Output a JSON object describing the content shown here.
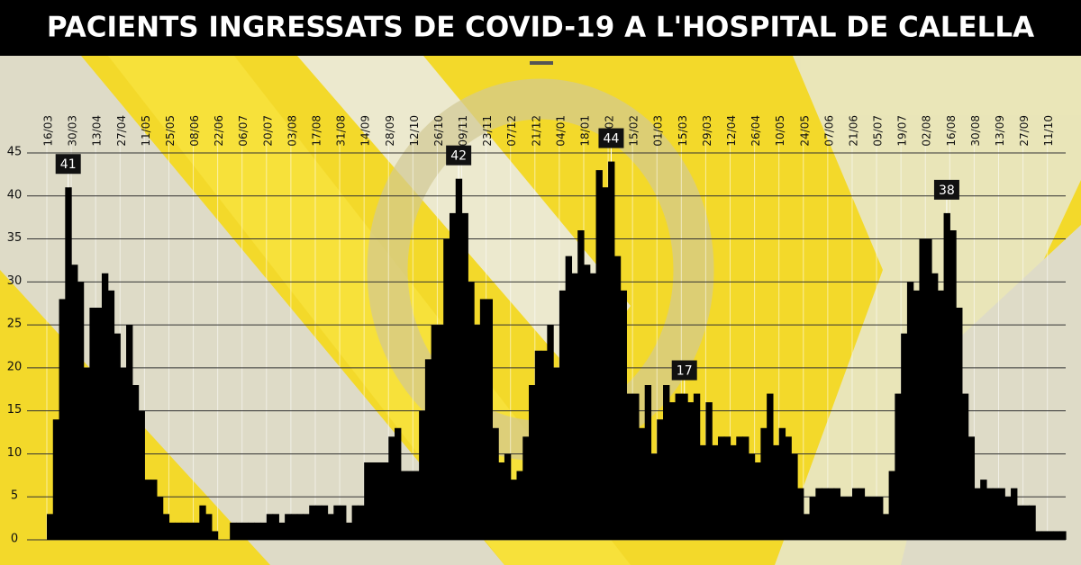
{
  "chart_data": {
    "type": "bar",
    "title": "PACIENTS INGRESSATS DE COVID-19 A L'HOSPITAL DE CALELLA",
    "color": "#000000",
    "ylim": [
      0,
      45
    ],
    "yticks": [
      0,
      5,
      10,
      15,
      20,
      25,
      30,
      35,
      40,
      45
    ],
    "grid": true,
    "categories": [
      "16/03",
      null,
      null,
      null,
      "30/03",
      null,
      null,
      null,
      "13/04",
      null,
      null,
      null,
      "27/04",
      null,
      null,
      null,
      "11/05",
      null,
      null,
      null,
      "25/05",
      null,
      null,
      null,
      "08/06",
      null,
      null,
      null,
      "22/06",
      null,
      null,
      null,
      "06/07",
      null,
      null,
      null,
      "20/07",
      null,
      null,
      null,
      "03/08",
      null,
      null,
      null,
      "17/08",
      null,
      null,
      null,
      "31/08",
      null,
      null,
      null,
      "14/09",
      null,
      null,
      null,
      "28/09",
      null,
      null,
      null,
      "12/10",
      null,
      null,
      null,
      "26/10",
      null,
      null,
      null,
      "09/11",
      null,
      null,
      null,
      "23/11",
      null,
      null,
      null,
      "07/12",
      null,
      null,
      null,
      "21/12",
      null,
      null,
      null,
      "04/01",
      null,
      null,
      null,
      "18/01",
      null,
      null,
      null,
      "01/02",
      null,
      null,
      null,
      "15/02",
      null,
      null,
      null,
      "01/03",
      null,
      null,
      null,
      "15/03",
      null,
      null,
      null,
      "29/03",
      null,
      null,
      null,
      "12/04",
      null,
      null,
      null,
      "26/04",
      null,
      null,
      null,
      "10/05",
      null,
      null,
      null,
      "24/05",
      null,
      null,
      null,
      "07/06",
      null,
      null,
      null,
      "21/06",
      null,
      null,
      null,
      "05/07",
      null,
      null,
      null,
      "19/07",
      null,
      null,
      null,
      "02/08",
      null,
      null,
      null,
      "16/08",
      null,
      null,
      null,
      "30/08",
      null,
      null,
      null,
      "13/09",
      null,
      null,
      null,
      "27/09",
      null,
      null,
      null,
      "11/10",
      null,
      null
    ],
    "values": [
      3,
      14,
      28,
      41,
      32,
      30,
      20,
      27,
      27,
      31,
      29,
      24,
      20,
      25,
      18,
      15,
      7,
      7,
      5,
      3,
      2,
      2,
      2,
      2,
      2,
      4,
      3,
      1,
      0,
      0,
      2,
      2,
      2,
      2,
      2,
      2,
      3,
      3,
      2,
      3,
      3,
      3,
      3,
      4,
      4,
      4,
      3,
      4,
      4,
      2,
      4,
      4,
      9,
      9,
      9,
      9,
      12,
      13,
      8,
      8,
      8,
      15,
      21,
      25,
      25,
      35,
      38,
      42,
      38,
      30,
      25,
      28,
      28,
      13,
      9,
      10,
      7,
      8,
      12,
      18,
      22,
      22,
      25,
      20,
      29,
      33,
      31,
      36,
      32,
      31,
      43,
      41,
      44,
      33,
      29,
      17,
      17,
      13,
      18,
      10,
      14,
      18,
      16,
      17,
      17,
      16,
      17,
      11,
      16,
      11,
      12,
      12,
      11,
      12,
      12,
      10,
      9,
      13,
      17,
      11,
      13,
      12,
      10,
      6,
      3,
      5,
      6,
      6,
      6,
      6,
      5,
      5,
      6,
      6,
      5,
      5,
      5,
      3,
      8,
      17,
      24,
      30,
      29,
      35,
      35,
      31,
      29,
      38,
      36,
      27,
      17,
      12,
      6,
      7,
      6,
      6,
      6,
      5,
      6,
      4,
      4,
      4,
      1,
      1,
      1,
      1,
      1
    ],
    "value_labels": [
      null,
      null,
      null,
      "41",
      null,
      null,
      null,
      null,
      null,
      null,
      null,
      null,
      null,
      null,
      null,
      null,
      null,
      null,
      null,
      null,
      null,
      null,
      null,
      null,
      null,
      null,
      null,
      null,
      null,
      null,
      null,
      null,
      null,
      null,
      null,
      null,
      null,
      null,
      null,
      null,
      null,
      null,
      null,
      null,
      null,
      null,
      null,
      null,
      null,
      null,
      null,
      null,
      null,
      null,
      null,
      null,
      null,
      null,
      null,
      null,
      null,
      null,
      null,
      null,
      null,
      null,
      null,
      "42",
      null,
      null,
      null,
      null,
      null,
      null,
      null,
      null,
      null,
      null,
      null,
      null,
      null,
      null,
      null,
      null,
      null,
      null,
      null,
      null,
      null,
      null,
      null,
      null,
      "44",
      null,
      null,
      null,
      null,
      null,
      null,
      null,
      null,
      null,
      null,
      null,
      "17",
      null,
      null,
      null,
      null,
      null,
      null,
      null,
      null,
      null,
      null,
      null,
      null,
      null,
      null,
      null,
      null,
      null,
      null,
      null,
      null,
      null,
      null,
      null,
      null,
      null,
      null,
      null,
      null,
      null,
      null,
      null,
      null,
      null,
      null,
      null,
      null,
      null,
      null,
      null,
      null,
      null,
      null,
      "38",
      null,
      null,
      null,
      null,
      null,
      null,
      null,
      null,
      null,
      null,
      null,
      null,
      null,
      null,
      null,
      null,
      null,
      null,
      null
    ]
  }
}
